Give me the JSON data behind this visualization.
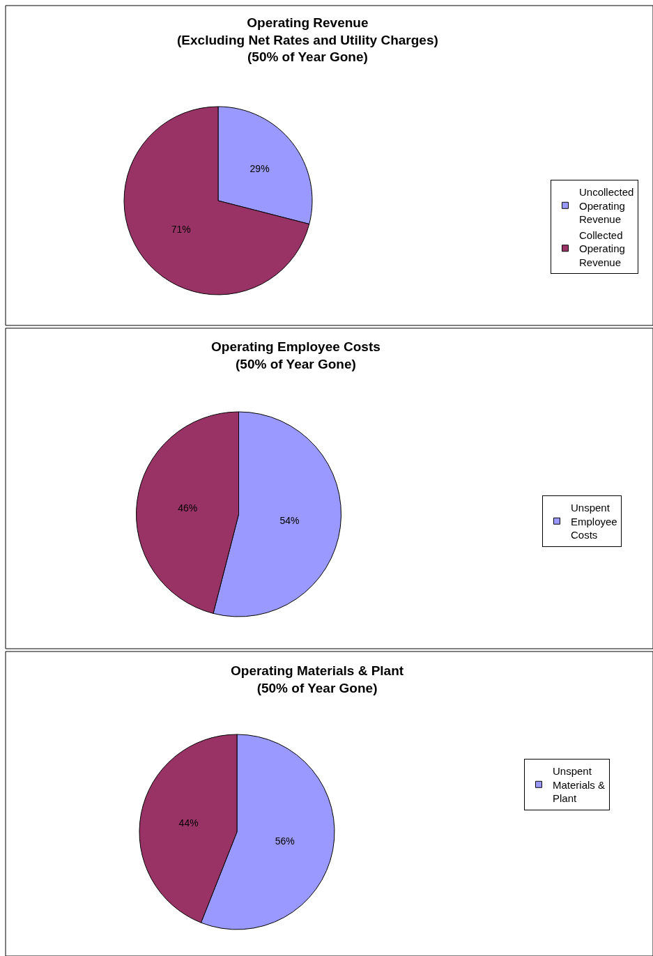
{
  "chart_data": [
    {
      "type": "pie",
      "title": "Operating Revenue\n(Excluding Net Rates and Utility Charges)\n(50% of Year Gone)",
      "categories": [
        "Uncollected Operating Revenue",
        "Collected Operating Revenue"
      ],
      "values": [
        29,
        71
      ],
      "colors": [
        "#9999ff",
        "#993366"
      ],
      "value_labels": [
        "29%",
        "71%"
      ],
      "legend": "right"
    },
    {
      "type": "pie",
      "title": "Operating Employee Costs\n(50% of Year Gone)",
      "categories": [
        "Unspent Employee Costs",
        null
      ],
      "values": [
        54,
        46
      ],
      "colors": [
        "#9999ff",
        "#993366"
      ],
      "value_labels": [
        "54%",
        "46%"
      ],
      "legend": "right"
    },
    {
      "type": "pie",
      "title": "Operating Materials & Plant\n(50% of Year Gone)",
      "categories": [
        "Unspent Materials & Plant",
        null
      ],
      "values": [
        56,
        44
      ],
      "colors": [
        "#9999ff",
        "#993366"
      ],
      "value_labels": [
        "56%",
        "44%"
      ],
      "legend": "right"
    }
  ]
}
